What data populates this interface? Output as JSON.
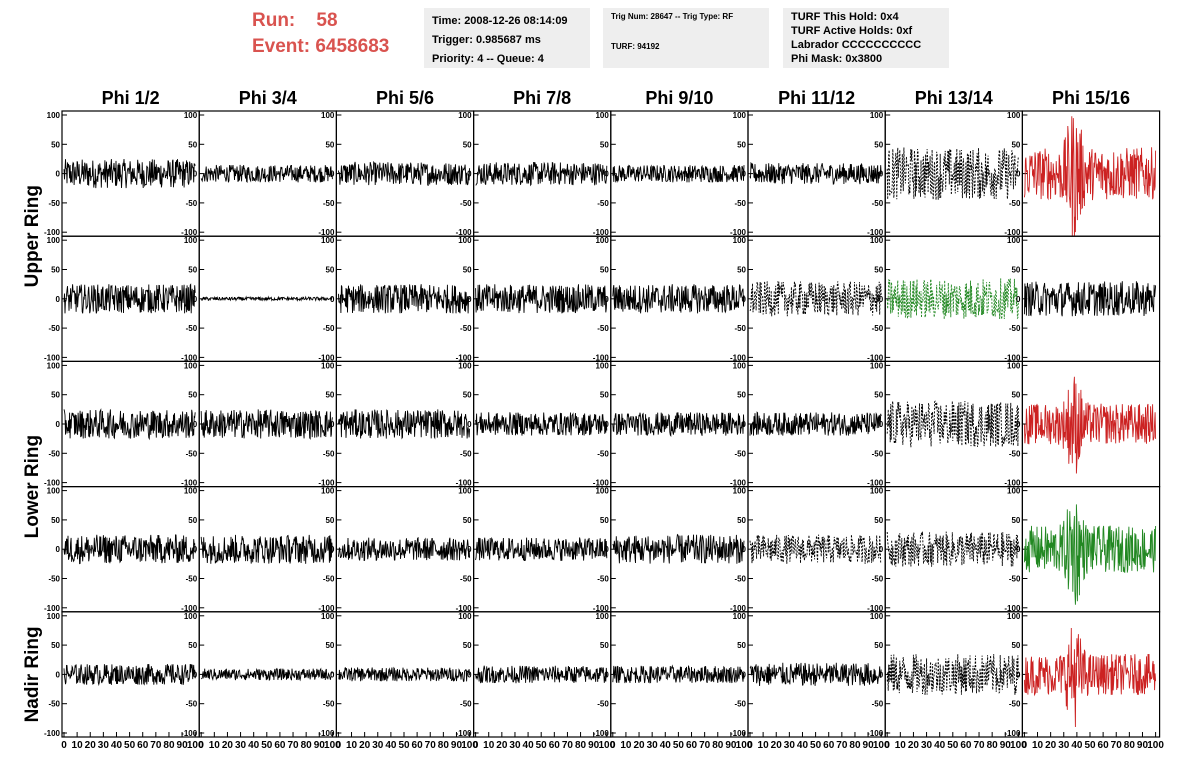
{
  "header": {
    "run_label": "Run:",
    "run_value": "58",
    "event_label": "Event:",
    "event_value": "6458683",
    "accent_color": "#d9534f",
    "time_box": [
      "Time: 2008-12-26 08:14:09",
      "Trigger: 0.985687 ms",
      "Priority: 4 -- Queue: 4"
    ],
    "trig_box": [
      "Trig Num: 28647 -- Trig Type: RF",
      "",
      "TURF: 94192"
    ],
    "turf_box": [
      "TURF This Hold: 0x4",
      "TURF Active Holds: 0xf",
      "Labrador CCCCCCCCCC",
      "Phi Mask: 0x3800"
    ]
  },
  "chart_data": {
    "type": "line",
    "columns": [
      "Phi 1/2",
      "Phi 3/4",
      "Phi 5/6",
      "Phi 7/8",
      "Phi 9/10",
      "Phi 11/12",
      "Phi 13/14",
      "Phi 15/16"
    ],
    "rows": [
      {
        "label": "Upper Ring",
        "span": 2
      },
      {
        "label": "Lower Ring",
        "span": 2
      },
      {
        "label": "Nadir Ring",
        "span": 1
      }
    ],
    "xlim": [
      0,
      100
    ],
    "ylim": [
      -100,
      100
    ],
    "y_ticks": [
      "100",
      "50",
      "0",
      "-50",
      "-100"
    ],
    "x_ticks": [
      "0",
      "10",
      "20",
      "30",
      "40",
      "50",
      "60",
      "70",
      "80",
      "90",
      "100"
    ],
    "colors": {
      "normal": "#000000",
      "red": "#cc2222",
      "green": "#228822"
    },
    "panels": [
      [
        "solid",
        "solid",
        "solid",
        "solid",
        "solid",
        "solid",
        "dashed",
        "red"
      ],
      [
        "solid",
        "solid",
        "solid",
        "solid",
        "solid",
        "dashed",
        "green-dashed",
        "solid"
      ],
      [
        "solid",
        "solid",
        "solid",
        "solid",
        "solid",
        "solid",
        "dashed",
        "red"
      ],
      [
        "solid",
        "solid",
        "solid",
        "solid",
        "solid",
        "dashed",
        "dashed",
        "green"
      ],
      [
        "solid",
        "solid",
        "solid",
        "solid",
        "solid",
        "solid",
        "dashed",
        "red"
      ]
    ],
    "amplitude": [
      [
        25,
        15,
        20,
        20,
        15,
        18,
        45,
        45
      ],
      [
        25,
        3,
        25,
        25,
        25,
        30,
        35,
        30
      ],
      [
        25,
        25,
        25,
        20,
        20,
        20,
        40,
        35
      ],
      [
        25,
        25,
        20,
        20,
        25,
        25,
        30,
        40
      ],
      [
        18,
        10,
        12,
        15,
        15,
        20,
        35,
        35
      ]
    ]
  }
}
